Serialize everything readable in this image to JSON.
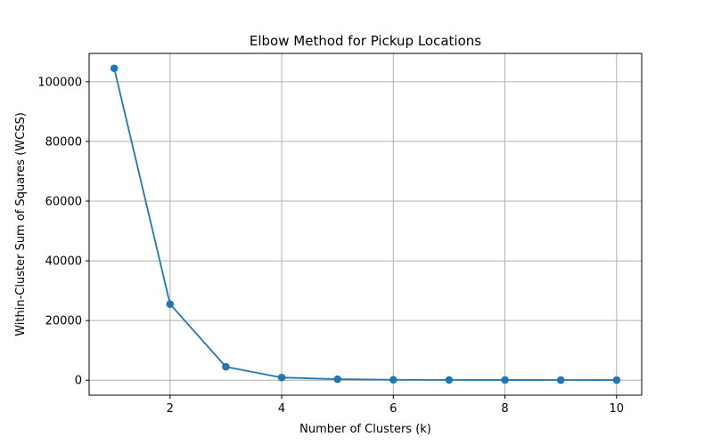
{
  "chart_data": {
    "type": "line",
    "title": "Elbow Method for Pickup Locations",
    "xlabel": "Number of Clusters (k)",
    "ylabel": "Within-Cluster Sum of Squares (WCSS)",
    "x": [
      1,
      2,
      3,
      4,
      5,
      6,
      7,
      8,
      9,
      10
    ],
    "series": [
      {
        "values": [
          104500,
          25500,
          4500,
          900,
          350,
          150,
          100,
          80,
          60,
          50
        ],
        "color": "#1f77b4",
        "marker": "circle"
      }
    ],
    "xlim": [
      0.55,
      10.45
    ],
    "ylim": [
      -5000,
      109500
    ],
    "xticks": [
      2,
      4,
      6,
      8,
      10
    ],
    "yticks": [
      0,
      20000,
      40000,
      60000,
      80000,
      100000
    ],
    "grid": true,
    "legend": "none"
  }
}
